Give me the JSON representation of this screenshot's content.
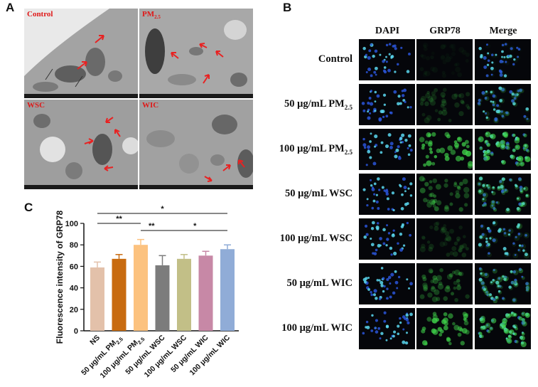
{
  "panels": {
    "a": "A",
    "b": "B",
    "c": "C"
  },
  "em": [
    {
      "label": "Control",
      "sub": ""
    },
    {
      "label": "PM",
      "sub": "2.5"
    },
    {
      "label": "WSC",
      "sub": ""
    },
    {
      "label": "WIC",
      "sub": ""
    }
  ],
  "fluorescence": {
    "headers": [
      "DAPI",
      "GRP78",
      "Merge"
    ],
    "rows": [
      {
        "label": "Control",
        "sub": "",
        "glow": 0.05
      },
      {
        "label": "50 μg/mL PM",
        "sub": "2.5",
        "glow": 0.2
      },
      {
        "label": "100 μg/mL PM",
        "sub": "2.5",
        "glow": 0.75
      },
      {
        "label": "50 μg/mL WSC",
        "sub": "",
        "glow": 0.4
      },
      {
        "label": "100 μg/mL WSC",
        "sub": "",
        "glow": 0.15
      },
      {
        "label": "50 μg/mL WIC",
        "sub": "",
        "glow": 0.35
      },
      {
        "label": "100 μg/mL WIC",
        "sub": "",
        "glow": 0.7
      }
    ]
  },
  "chart_data": {
    "type": "bar",
    "ylabel": "Fluorescence intensity of GRP78",
    "ylim": [
      0,
      100
    ],
    "yticks": [
      0,
      20,
      40,
      60,
      80,
      100
    ],
    "categories": [
      {
        "text": "NS",
        "sub": ""
      },
      {
        "text": "50 μg/mL PM",
        "sub": "2.5"
      },
      {
        "text": "100 μg/mL PM",
        "sub": "2.5"
      },
      {
        "text": "50 μg/mL WSC",
        "sub": ""
      },
      {
        "text": "100 μg/mL WSC",
        "sub": ""
      },
      {
        "text": "50 μg/mL WIC",
        "sub": ""
      },
      {
        "text": "100 μg/mL WIC",
        "sub": ""
      }
    ],
    "values": [
      59,
      67,
      80,
      61,
      67,
      70,
      76
    ],
    "errors": [
      5,
      4,
      5,
      9,
      4,
      4,
      4
    ],
    "colors": [
      "#e3c1aa",
      "#c86b10",
      "#fcc27f",
      "#7c7c7c",
      "#c2bf87",
      "#c788a6",
      "#90acd7"
    ],
    "significance": [
      {
        "from": 0,
        "to": 2,
        "label": "**",
        "level": 1
      },
      {
        "from": 2,
        "to": 3,
        "label": "**",
        "level": 0
      },
      {
        "from": 3,
        "to": 6,
        "label": "*",
        "level": 0
      },
      {
        "from": 0,
        "to": 6,
        "label": "*",
        "level": 2
      }
    ]
  }
}
